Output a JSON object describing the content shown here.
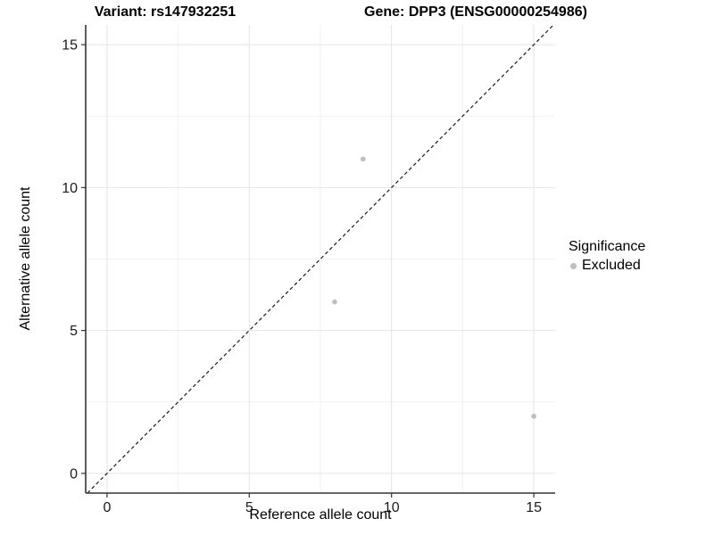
{
  "chart_data": {
    "type": "scatter",
    "titles": {
      "left": "Variant: rs147932251",
      "right": "Gene: DPP3 (ENSG00000254986)"
    },
    "xlabel": "Reference allele count",
    "ylabel": "Alternative allele count",
    "xlim": [
      -0.75,
      15.75
    ],
    "ylim": [
      -0.69,
      15.69
    ],
    "xticks": [
      0,
      5,
      10,
      15
    ],
    "yticks": [
      0,
      5,
      10,
      15
    ],
    "minor_xticks": [
      2.5,
      7.5,
      12.5
    ],
    "minor_yticks": [
      2.5,
      7.5,
      12.5
    ],
    "grid": true,
    "legend_position": "right",
    "series": [
      {
        "name": "Excluded",
        "color": "#bebebe",
        "points": [
          {
            "x": 9,
            "y": 11
          },
          {
            "x": 8,
            "y": 6
          },
          {
            "x": 15,
            "y": 2
          }
        ]
      }
    ],
    "reference_line": {
      "type": "identity",
      "equation": "y = x",
      "style": "dashed",
      "color": "#1a1a1a"
    },
    "legend": {
      "title": "Significance",
      "items": [
        {
          "label": "Excluded",
          "color": "#bebebe"
        }
      ]
    }
  },
  "style_colors": {
    "axis_line": "#333333",
    "tick_text": "#1a1a1a",
    "grid_major": "#e4e4e4",
    "grid_minor": "#f1f1f1",
    "background": "#ffffff"
  }
}
